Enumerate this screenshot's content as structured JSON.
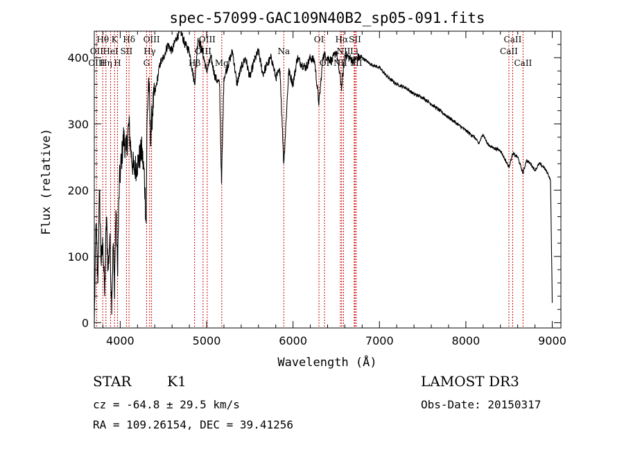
{
  "chart_data": {
    "type": "line",
    "title": "spec-57099-GAC109N40B2_sp05-091.fits",
    "xlabel": "Wavelength (Å)",
    "ylabel": "Flux (relative)",
    "xlim": [
      3700,
      9100
    ],
    "ylim": [
      -8,
      440
    ],
    "x_ticks": [
      4000,
      5000,
      6000,
      7000,
      8000,
      9000
    ],
    "x_tick_labels": [
      "4000",
      "5000",
      "6000",
      "7000",
      "8000",
      "9000"
    ],
    "y_ticks": [
      0,
      100,
      200,
      300,
      400
    ],
    "y_tick_labels": [
      "0",
      "100",
      "200",
      "300",
      "400"
    ],
    "grid": false,
    "series": [
      {
        "name": "flux",
        "x": [
          3700,
          3720,
          3740,
          3760,
          3780,
          3800,
          3820,
          3840,
          3860,
          3880,
          3900,
          3920,
          3933,
          3950,
          3968,
          3990,
          4010,
          4040,
          4070,
          4101,
          4130,
          4160,
          4200,
          4250,
          4280,
          4300,
          4310,
          4330,
          4350,
          4380,
          4420,
          4460,
          4500,
          4550,
          4600,
          4650,
          4700,
          4750,
          4800,
          4861,
          4900,
          4950,
          5000,
          5050,
          5100,
          5150,
          5172,
          5200,
          5250,
          5300,
          5350,
          5400,
          5450,
          5500,
          5550,
          5600,
          5650,
          5700,
          5750,
          5800,
          5850,
          5893,
          5950,
          6000,
          6050,
          6100,
          6150,
          6200,
          6250,
          6300,
          6350,
          6400,
          6450,
          6500,
          6563,
          6600,
          6650,
          6700,
          6750,
          6800,
          6850,
          6900,
          7000,
          7100,
          7200,
          7300,
          7400,
          7500,
          7600,
          7700,
          7800,
          7900,
          8000,
          8100,
          8150,
          8200,
          8250,
          8300,
          8400,
          8498,
          8542,
          8600,
          8662,
          8700,
          8750,
          8800,
          8850,
          8900,
          8950,
          8980,
          9000
        ],
        "values": [
          0,
          150,
          60,
          200,
          90,
          120,
          40,
          160,
          80,
          130,
          30,
          120,
          50,
          170,
          80,
          210,
          240,
          280,
          260,
          300,
          250,
          230,
          240,
          260,
          220,
          150,
          300,
          370,
          280,
          330,
          360,
          390,
          400,
          420,
          410,
          430,
          440,
          420,
          410,
          360,
          430,
          410,
          380,
          400,
          370,
          360,
          210,
          370,
          390,
          410,
          360,
          385,
          400,
          370,
          395,
          410,
          375,
          390,
          400,
          370,
          380,
          240,
          380,
          360,
          400,
          390,
          385,
          400,
          395,
          330,
          405,
          400,
          395,
          410,
          355,
          405,
          400,
          395,
          400,
          400,
          395,
          390,
          385,
          370,
          360,
          355,
          345,
          340,
          330,
          320,
          310,
          300,
          290,
          280,
          270,
          285,
          270,
          265,
          260,
          235,
          255,
          250,
          225,
          245,
          240,
          230,
          240,
          235,
          225,
          215,
          30
        ]
      }
    ],
    "line_labels": [
      {
        "text": "Hθ",
        "wavelength": 3798,
        "row": 1
      },
      {
        "text": "K",
        "wavelength": 3934,
        "row": 1
      },
      {
        "text": "Hδ",
        "wavelength": 4102,
        "row": 1
      },
      {
        "text": "OIII",
        "wavelength": 4363,
        "row": 1
      },
      {
        "text": "OIII",
        "wavelength": 5007,
        "row": 1
      },
      {
        "text": "OI",
        "wavelength": 6300,
        "row": 1
      },
      {
        "text": "Hα",
        "wavelength": 6563,
        "row": 1
      },
      {
        "text": "SII",
        "wavelength": 6717,
        "row": 1
      },
      {
        "text": "CaII",
        "wavelength": 8542,
        "row": 1
      },
      {
        "text": "OII",
        "wavelength": 3727,
        "row": 2
      },
      {
        "text": "HeI",
        "wavelength": 3889,
        "row": 2
      },
      {
        "text": "SII",
        "wavelength": 4072,
        "row": 2
      },
      {
        "text": "Hγ",
        "wavelength": 4341,
        "row": 2
      },
      {
        "text": "OIII",
        "wavelength": 4959,
        "row": 2
      },
      {
        "text": "Na",
        "wavelength": 5893,
        "row": 2
      },
      {
        "text": "NII",
        "wavelength": 6584,
        "row": 2
      },
      {
        "text": "Li",
        "wavelength": 6708,
        "row": 2
      },
      {
        "text": "CaII",
        "wavelength": 8498,
        "row": 2
      },
      {
        "text": "OIII",
        "wavelength": 3727,
        "row": 3
      },
      {
        "text": "Hη",
        "wavelength": 3835,
        "row": 3
      },
      {
        "text": "H",
        "wavelength": 3969,
        "row": 3
      },
      {
        "text": "G",
        "wavelength": 4305,
        "row": 3
      },
      {
        "text": "Hβ",
        "wavelength": 4861,
        "row": 3
      },
      {
        "text": "Mg",
        "wavelength": 5175,
        "row": 3
      },
      {
        "text": "OI",
        "wavelength": 6364,
        "row": 3
      },
      {
        "text": "NII",
        "wavelength": 6548,
        "row": 3
      },
      {
        "text": "SII",
        "wavelength": 6731,
        "row": 3
      },
      {
        "text": "CaII",
        "wavelength": 8662,
        "row": 3
      }
    ],
    "line_positions": [
      3727,
      3798,
      3835,
      3889,
      3934,
      3969,
      4072,
      4102,
      4305,
      4341,
      4363,
      4861,
      4959,
      5007,
      5175,
      5893,
      6300,
      6364,
      6548,
      6563,
      6584,
      6708,
      6717,
      6731,
      8498,
      8542,
      8662
    ],
    "colors": {
      "spectrum": "#000000",
      "lines": "#cc0000",
      "frame": "#000000"
    }
  },
  "info": {
    "object_type": "STAR",
    "subclass": "K1",
    "survey": "LAMOST DR3",
    "cz": "cz = -64.8 ± 29.5 km/s",
    "obs_date": "Obs-Date: 20150317",
    "coords": "RA = 109.26154, DEC =  39.41256"
  }
}
